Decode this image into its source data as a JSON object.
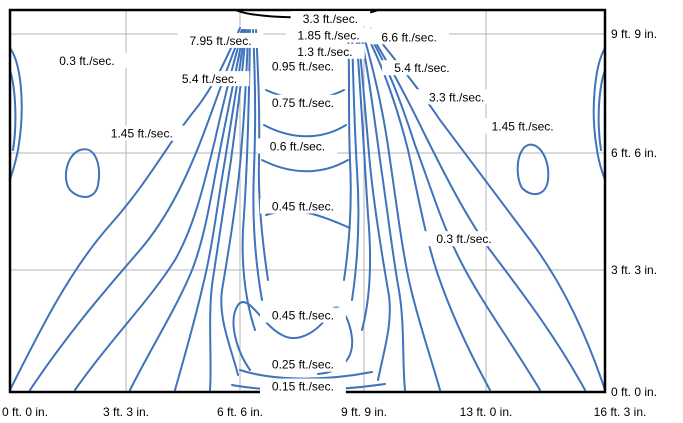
{
  "chart_data": {
    "type": "contour",
    "x_ticks": [
      "0 ft. 0 in.",
      "3 ft. 3 in.",
      "6 ft. 6 in.",
      "9 ft. 9 in.",
      "13 ft. 0 in.",
      "16 ft. 3 in."
    ],
    "y_ticks": [
      "0 ft. 0 in.",
      "3 ft. 3 in.",
      "6 ft. 6 in.",
      "9 ft. 9 in."
    ],
    "x_range_ft": [
      0,
      16.25
    ],
    "y_range_ft": [
      0,
      10.5
    ],
    "grid": true,
    "contour_labels": [
      {
        "text": "3.3 ft./sec.",
        "x_ft": 8.75,
        "y_ft": 10.25
      },
      {
        "text": "1.85 ft./sec.",
        "x_ft": 8.7,
        "y_ft": 9.8
      },
      {
        "text": "7.95 ft./sec.",
        "x_ft": 5.75,
        "y_ft": 9.65
      },
      {
        "text": "6.6 ft./sec.",
        "x_ft": 10.9,
        "y_ft": 9.75
      },
      {
        "text": "1.3 ft./sec.",
        "x_ft": 8.6,
        "y_ft": 9.35
      },
      {
        "text": "0.3 ft./sec.",
        "x_ft": 2.1,
        "y_ft": 9.1
      },
      {
        "text": "0.95 ft./sec.",
        "x_ft": 8.0,
        "y_ft": 8.95
      },
      {
        "text": "5.4 ft./sec.",
        "x_ft": 11.25,
        "y_ft": 8.9
      },
      {
        "text": "5.4 ft./sec.",
        "x_ft": 5.45,
        "y_ft": 8.6
      },
      {
        "text": "0.75 ft./sec.",
        "x_ft": 8.0,
        "y_ft": 7.95
      },
      {
        "text": "3.3 ft./sec.",
        "x_ft": 12.2,
        "y_ft": 8.1
      },
      {
        "text": "1.45 ft./sec.",
        "x_ft": 14.0,
        "y_ft": 7.3
      },
      {
        "text": "1.45 ft./sec.",
        "x_ft": 3.6,
        "y_ft": 7.1
      },
      {
        "text": "0.6 ft./sec.",
        "x_ft": 7.85,
        "y_ft": 6.75
      },
      {
        "text": "0.45 ft./sec.",
        "x_ft": 8.0,
        "y_ft": 5.1
      },
      {
        "text": "0.3 ft./sec.",
        "x_ft": 12.4,
        "y_ft": 4.2
      },
      {
        "text": "0.45 ft./sec.",
        "x_ft": 8.0,
        "y_ft": 2.1
      },
      {
        "text": "0.25 ft./sec.",
        "x_ft": 8.0,
        "y_ft": 0.75
      },
      {
        "text": "0.15 ft./sec.",
        "x_ft": 8.0,
        "y_ft": 0.15
      }
    ]
  }
}
